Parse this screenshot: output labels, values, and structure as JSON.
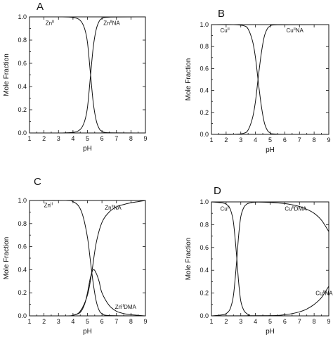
{
  "chart_data": [
    {
      "type": "line",
      "panel_label": "A",
      "title": "",
      "xlabel": "pH",
      "ylabel": "Mole Fraction",
      "xlim": [
        1,
        9
      ],
      "ylim": [
        0,
        1.0
      ],
      "x_ticks": [
        "1",
        "2",
        "3",
        "4",
        "5",
        "6",
        "7",
        "8",
        "9"
      ],
      "y_ticks": [
        "0.0",
        "0.2",
        "0.4",
        "0.6",
        "0.8",
        "1.0"
      ],
      "grid": false,
      "series": [
        {
          "name": "Zn(II)",
          "label_text": "Zn",
          "label_sup": "II",
          "label_suffix": "",
          "label_at": [
            2.1,
            0.95
          ],
          "x": [
            1,
            3,
            4,
            4.5,
            4.8,
            5.0,
            5.2,
            5.4,
            5.6,
            5.8,
            6.0,
            6.5,
            9
          ],
          "y": [
            1.0,
            1.0,
            0.995,
            0.97,
            0.9,
            0.78,
            0.52,
            0.26,
            0.11,
            0.04,
            0.015,
            0.002,
            0.0
          ]
        },
        {
          "name": "Zn(II)NA",
          "label_text": "Zn",
          "label_sup": "II",
          "label_suffix": "NA",
          "label_at": [
            6.1,
            0.95
          ],
          "x": [
            1,
            3,
            4,
            4.5,
            4.8,
            5.0,
            5.2,
            5.4,
            5.6,
            5.8,
            6.0,
            6.5,
            9
          ],
          "y": [
            0.0,
            0.0,
            0.005,
            0.03,
            0.1,
            0.22,
            0.48,
            0.74,
            0.89,
            0.96,
            0.985,
            0.998,
            1.0
          ]
        }
      ]
    },
    {
      "type": "line",
      "panel_label": "B",
      "title": "",
      "xlabel": "pH",
      "ylabel": "Mole Fraction",
      "xlim": [
        1,
        9
      ],
      "ylim": [
        0,
        1.0
      ],
      "x_ticks": [
        "1",
        "2",
        "3",
        "4",
        "5",
        "6",
        "7",
        "8",
        "9"
      ],
      "y_ticks": [
        "0.0",
        "0.2",
        "0.4",
        "0.6",
        "0.8",
        "1.0"
      ],
      "grid": false,
      "series": [
        {
          "name": "Cu(II)",
          "label_text": "Cu",
          "label_sup": "II",
          "label_suffix": "",
          "label_at": [
            1.6,
            0.95
          ],
          "x": [
            1,
            2.5,
            3.2,
            3.5,
            3.8,
            4.0,
            4.2,
            4.4,
            4.6,
            4.8,
            5.0,
            5.5,
            9
          ],
          "y": [
            1.0,
            1.0,
            0.99,
            0.96,
            0.85,
            0.7,
            0.47,
            0.26,
            0.11,
            0.04,
            0.015,
            0.002,
            0.0
          ]
        },
        {
          "name": "Cu(II)NA",
          "label_text": "Cu",
          "label_sup": "II",
          "label_suffix": "NA",
          "label_at": [
            6.1,
            0.95
          ],
          "x": [
            1,
            2.5,
            3.2,
            3.5,
            3.8,
            4.0,
            4.2,
            4.4,
            4.6,
            4.8,
            5.0,
            5.5,
            9
          ],
          "y": [
            0.0,
            0.0,
            0.01,
            0.04,
            0.15,
            0.3,
            0.53,
            0.74,
            0.89,
            0.96,
            0.985,
            0.998,
            1.0
          ]
        }
      ]
    },
    {
      "type": "line",
      "panel_label": "C",
      "title": "",
      "xlabel": "pH",
      "ylabel": "Mole Fraction",
      "xlim": [
        1,
        9
      ],
      "ylim": [
        0,
        1.0
      ],
      "x_ticks": [
        "1",
        "2",
        "3",
        "4",
        "5",
        "6",
        "7",
        "8",
        "9"
      ],
      "y_ticks": [
        "0.0",
        "0.2",
        "0.4",
        "0.6",
        "0.8",
        "1.0"
      ],
      "grid": false,
      "series": [
        {
          "name": "Zn(II)",
          "label_text": "Zn",
          "label_sup": "II",
          "label_suffix": "",
          "label_at": [
            2.0,
            0.96
          ],
          "x": [
            1,
            3.5,
            4.0,
            4.4,
            4.7,
            5.0,
            5.2,
            5.4,
            5.6,
            5.8,
            6.0,
            6.5,
            9
          ],
          "y": [
            1.0,
            1.0,
            0.99,
            0.95,
            0.86,
            0.68,
            0.48,
            0.28,
            0.13,
            0.05,
            0.02,
            0.003,
            0.0
          ]
        },
        {
          "name": "Zn(II)NA",
          "label_text": "Zn",
          "label_sup": "II",
          "label_suffix": "NA",
          "label_at": [
            6.2,
            0.94
          ],
          "x": [
            1,
            3.5,
            4.0,
            4.5,
            5.0,
            5.3,
            5.6,
            6.0,
            6.5,
            7.0,
            7.5,
            8.0,
            8.5,
            9
          ],
          "y": [
            0.0,
            0.0,
            0.005,
            0.04,
            0.18,
            0.38,
            0.63,
            0.81,
            0.9,
            0.945,
            0.965,
            0.98,
            0.99,
            1.0
          ]
        },
        {
          "name": "Zn(II)DMA",
          "label_text": "Zn",
          "label_sup": "II",
          "label_suffix": "DMA",
          "label_at": [
            6.9,
            0.08
          ],
          "x": [
            1,
            3.5,
            4.0,
            4.5,
            4.8,
            5.0,
            5.2,
            5.4,
            5.6,
            5.8,
            6.0,
            6.5,
            7.0,
            7.5,
            8.0,
            9
          ],
          "y": [
            0.0,
            0.0,
            0.005,
            0.03,
            0.1,
            0.2,
            0.33,
            0.4,
            0.37,
            0.3,
            0.2,
            0.09,
            0.04,
            0.02,
            0.01,
            0.0
          ]
        }
      ]
    },
    {
      "type": "line",
      "panel_label": "D",
      "title": "",
      "xlabel": "pH",
      "ylabel": "Mole Fraction",
      "xlim": [
        1,
        9
      ],
      "ylim": [
        0,
        1.0
      ],
      "x_ticks": [
        "1",
        "2",
        "3",
        "4",
        "5",
        "6",
        "7",
        "8",
        "9"
      ],
      "y_ticks": [
        "0.0",
        "0.2",
        "0.4",
        "0.6",
        "0.8",
        "1.0"
      ],
      "grid": false,
      "series": [
        {
          "name": "Cu(II)",
          "label_text": "Cu",
          "label_sup": "II",
          "label_suffix": "",
          "label_at": [
            1.6,
            0.94
          ],
          "x": [
            1,
            1.8,
            2.1,
            2.3,
            2.5,
            2.7,
            2.85,
            3.0,
            3.2,
            3.4,
            3.6,
            4.0,
            9
          ],
          "y": [
            1.0,
            0.99,
            0.97,
            0.93,
            0.82,
            0.55,
            0.3,
            0.13,
            0.05,
            0.02,
            0.008,
            0.001,
            0.0
          ]
        },
        {
          "name": "Cu(II)DMA",
          "label_text": "Cu",
          "label_sup": "II",
          "label_suffix": "DMA",
          "label_at": [
            6.0,
            0.94
          ],
          "x": [
            1,
            1.8,
            2.1,
            2.3,
            2.5,
            2.7,
            2.85,
            3.0,
            3.2,
            3.4,
            3.6,
            4.0,
            5.0,
            6.0,
            6.5,
            7.0,
            7.5,
            8.0,
            8.5,
            9
          ],
          "y": [
            0.0,
            0.01,
            0.03,
            0.07,
            0.18,
            0.45,
            0.7,
            0.87,
            0.95,
            0.98,
            0.99,
            0.998,
            0.995,
            0.985,
            0.975,
            0.96,
            0.935,
            0.9,
            0.84,
            0.74
          ]
        },
        {
          "name": "Cu(II)NA",
          "label_text": "Cu",
          "label_sup": "II",
          "label_suffix": "NA",
          "label_at": [
            8.1,
            0.2
          ],
          "x": [
            1,
            5.0,
            6.0,
            6.5,
            7.0,
            7.5,
            8.0,
            8.5,
            9
          ],
          "y": [
            0.0,
            0.002,
            0.01,
            0.02,
            0.035,
            0.06,
            0.1,
            0.16,
            0.26
          ]
        }
      ]
    }
  ]
}
